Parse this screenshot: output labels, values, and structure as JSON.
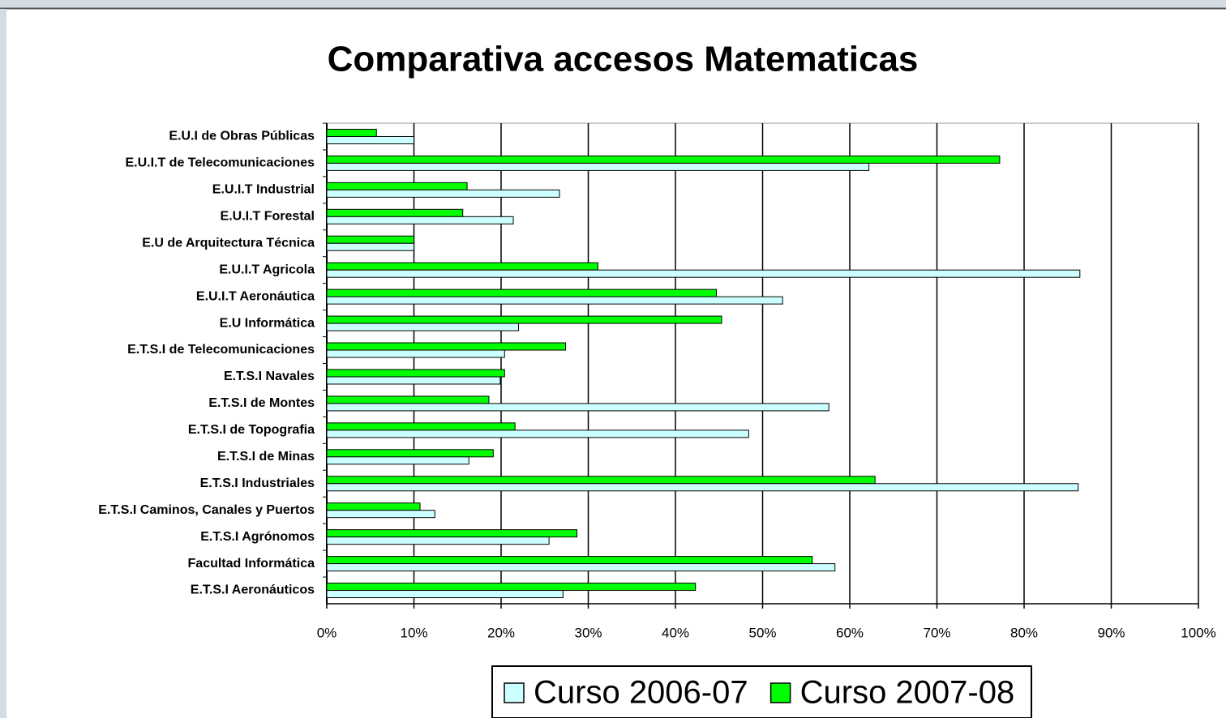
{
  "chart_data": {
    "type": "bar",
    "orientation": "horizontal",
    "title": "Comparativa accesos Matematicas",
    "categories": [
      "E.U.I de Obras Públicas",
      "E.U.I.T de Telecomunicaciones",
      "E.U.I.T Industrial",
      "E.U.I.T Forestal",
      "E.U de Arquitectura Técnica",
      "E.U.I.T Agricola",
      "E.U.I.T Aeronáutica",
      "E.U Informática",
      "E.T.S.I de Telecomunicaciones",
      "E.T.S.I Navales",
      "E.T.S.I de Montes",
      "E.T.S.I de Topografia",
      "E.T.S.I de Minas",
      "E.T.S.I Industriales",
      "E.T.S.I Caminos, Canales y Puertos",
      "E.T.S.I Agrónomos",
      "Facultad Informática",
      "E.T.S.I Aeronáuticos"
    ],
    "series": [
      {
        "name": "Curso 2006-07",
        "color": "#ccffff",
        "values": [
          10,
          62.2,
          26.7,
          21.4,
          10,
          86.4,
          52.3,
          22,
          20.4,
          19.9,
          57.6,
          48.4,
          16.3,
          86.2,
          12.4,
          25.5,
          58.3,
          27.1
        ]
      },
      {
        "name": "Curso 2007-08",
        "color": "#00ff00",
        "values": [
          5.7,
          77.2,
          16.1,
          15.6,
          10,
          31.1,
          44.7,
          45.3,
          27.4,
          20.4,
          18.6,
          21.6,
          19.1,
          62.9,
          10.7,
          28.7,
          55.7,
          42.3
        ]
      }
    ],
    "xlim": [
      0,
      100
    ],
    "xticks": [
      {
        "value": 0,
        "label": "0%"
      },
      {
        "value": 10,
        "label": "10%"
      },
      {
        "value": 20,
        "label": "20%"
      },
      {
        "value": 30,
        "label": "30%"
      },
      {
        "value": 40,
        "label": "40%"
      },
      {
        "value": 50,
        "label": "50%"
      },
      {
        "value": 60,
        "label": "60%"
      },
      {
        "value": 70,
        "label": "70%"
      },
      {
        "value": 80,
        "label": "80%"
      },
      {
        "value": 90,
        "label": "90%"
      },
      {
        "value": 100,
        "label": "100%"
      }
    ],
    "grid": true,
    "legend": "bottom"
  }
}
